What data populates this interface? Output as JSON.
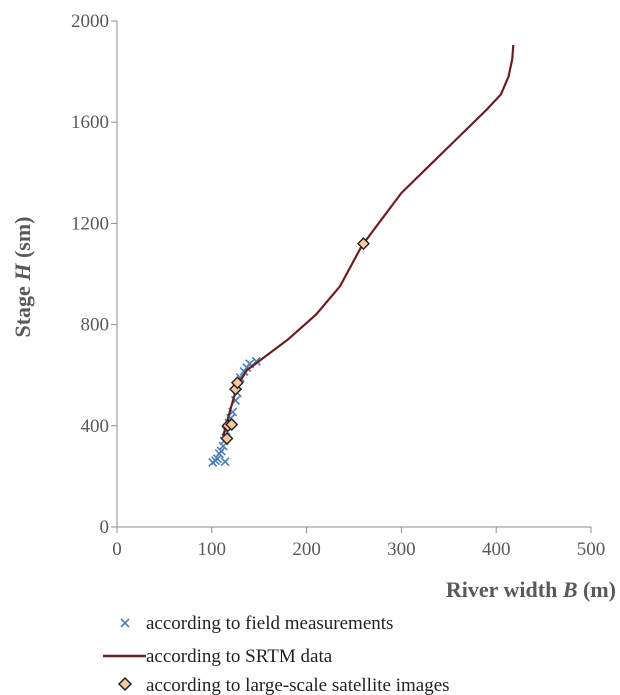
{
  "chart_data": {
    "type": "scatter",
    "xlabel_prefix": "River width ",
    "xlabel_var": "B",
    "xlabel_unit": " (m)",
    "ylabel_prefix": "Stage ",
    "ylabel_var": "H",
    "ylabel_unit": " (sm)",
    "xlim": [
      0,
      500
    ],
    "ylim": [
      0,
      2000
    ],
    "x_ticks": [
      0,
      100,
      200,
      300,
      400,
      500
    ],
    "y_ticks": [
      0,
      400,
      800,
      1200,
      1600,
      2000
    ],
    "x_tick_labels": [
      "0",
      "100",
      "200",
      "300",
      "400",
      "500"
    ],
    "y_tick_labels": [
      "0",
      "400",
      "800",
      "1200",
      "1600",
      "2000"
    ],
    "grid": false,
    "legend_position": "bottom",
    "series": [
      {
        "name": "according to field measurements",
        "kind": "marker-x",
        "color": "#4a7ebb",
        "points": [
          [
            101,
            255
          ],
          [
            104,
            262
          ],
          [
            106,
            270
          ],
          [
            108,
            290
          ],
          [
            110,
            300
          ],
          [
            112,
            320
          ],
          [
            113,
            340
          ],
          [
            114,
            258
          ],
          [
            115,
            380
          ],
          [
            118,
            410
          ],
          [
            120,
            430
          ],
          [
            122,
            455
          ],
          [
            125,
            500
          ],
          [
            127,
            530
          ],
          [
            130,
            590
          ],
          [
            134,
            615
          ],
          [
            137,
            630
          ],
          [
            140,
            645
          ],
          [
            147,
            655
          ]
        ]
      },
      {
        "name": "according to SRTM data",
        "kind": "line",
        "color": "#6b1f1f",
        "points": [
          [
            112,
            360
          ],
          [
            115,
            400
          ],
          [
            120,
            470
          ],
          [
            127,
            560
          ],
          [
            137,
            620
          ],
          [
            155,
            670
          ],
          [
            180,
            740
          ],
          [
            210,
            840
          ],
          [
            235,
            950
          ],
          [
            258,
            1110
          ],
          [
            280,
            1220
          ],
          [
            300,
            1320
          ],
          [
            330,
            1430
          ],
          [
            360,
            1540
          ],
          [
            390,
            1650
          ],
          [
            405,
            1710
          ],
          [
            413,
            1780
          ],
          [
            417,
            1850
          ],
          [
            418,
            1905
          ]
        ]
      },
      {
        "name": "according to large-scale satellite images",
        "kind": "marker-diamond",
        "color": "#f9c89b",
        "stroke": "#222222",
        "points": [
          [
            116,
            350
          ],
          [
            117,
            400
          ],
          [
            121,
            405
          ],
          [
            125,
            545
          ],
          [
            127,
            570
          ],
          [
            260,
            1120
          ]
        ]
      }
    ]
  }
}
